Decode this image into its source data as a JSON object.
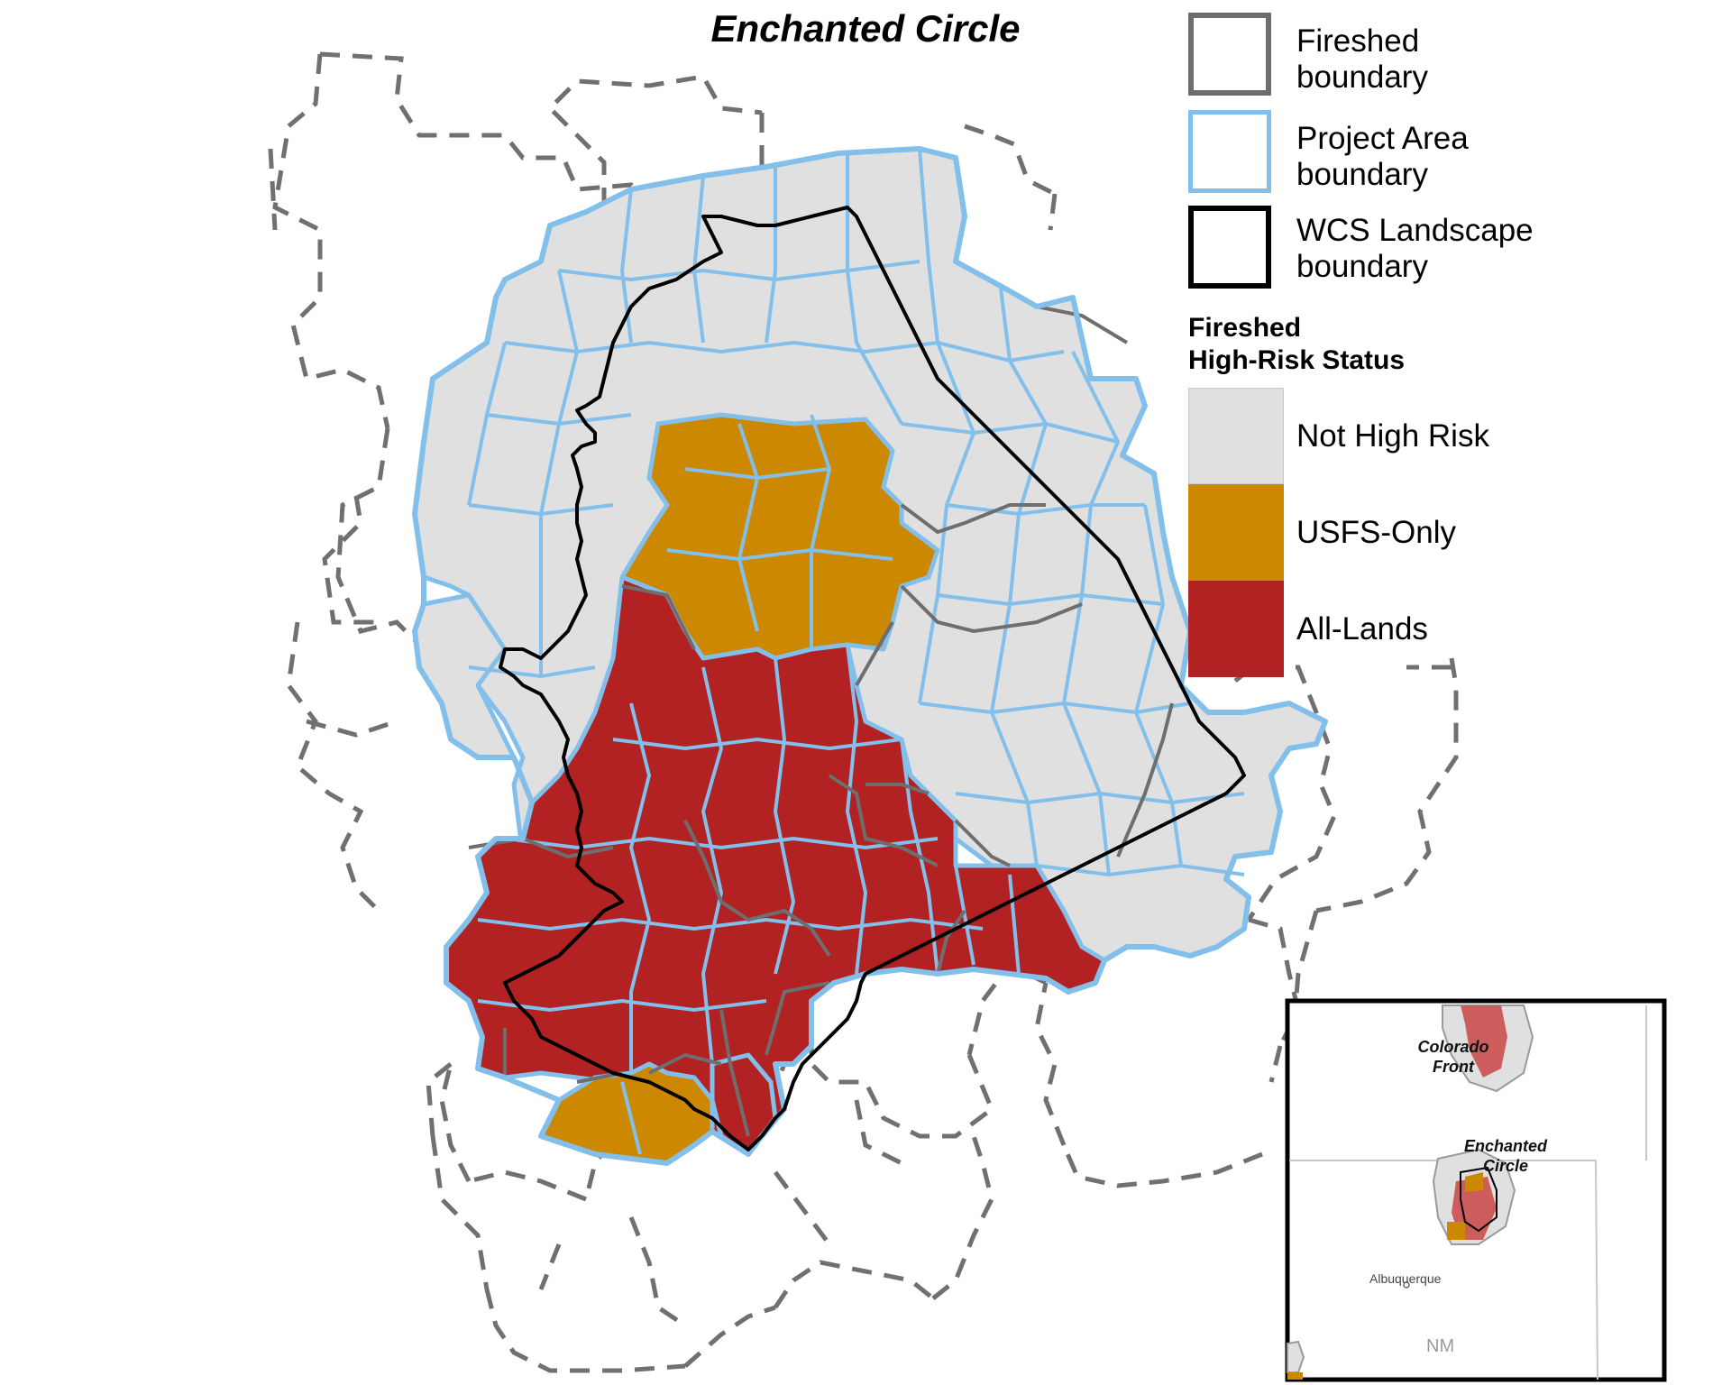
{
  "map": {
    "title": "Enchanted Circle",
    "colors": {
      "not_high_risk": "#e0e0e0",
      "usfs_only": "#cc8800",
      "all_lands": "#b22222",
      "fireshed_stroke": "#6e6e6e",
      "project_area_stroke": "#82bfea",
      "landscape_stroke": "#000000"
    }
  },
  "legend": {
    "boundaries": [
      {
        "label": "Fireshed\nboundary",
        "line1": "Fireshed",
        "line2": "boundary",
        "symbol": "gray-thick-outline"
      },
      {
        "label": "Project Area\nboundary",
        "line1": "Project Area",
        "line2": "boundary",
        "symbol": "light-blue-outline"
      },
      {
        "label": "WCS Landscape\nboundary",
        "line1": "WCS Landscape",
        "line2": "boundary",
        "symbol": "black-outline"
      }
    ],
    "status_heading_line1": "Fireshed",
    "status_heading_line2": "High-Risk Status",
    "status_items": [
      {
        "label": "Not High Risk",
        "color": "#e0e0e0"
      },
      {
        "label": "USFS-Only",
        "color": "#cc8800"
      },
      {
        "label": "All-Lands",
        "color": "#b22222"
      }
    ]
  },
  "inset": {
    "labels": {
      "colorado_front_line1": "Colorado",
      "colorado_front_line2": "Front",
      "enchanted_circle_line1": "Enchanted",
      "enchanted_circle_line2": "Circle",
      "city": "Albuquerque",
      "state": "NM"
    }
  }
}
